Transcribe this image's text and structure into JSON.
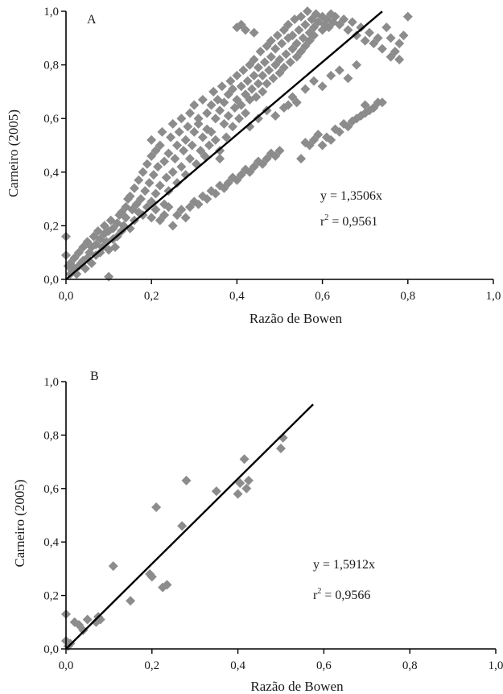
{
  "chart_data": [
    {
      "type": "scatter",
      "panel_label": "A",
      "xlabel": "Razão de Bowen",
      "ylabel": "Carneiro (2005)",
      "xlim": [
        0,
        1
      ],
      "ylim": [
        0,
        1
      ],
      "xticks": [
        "0,0",
        "0,2",
        "0,4",
        "0,6",
        "0,8",
        "1,0"
      ],
      "yticks": [
        "0,0",
        "0,2",
        "0,4",
        "0,6",
        "0,8",
        "1,0"
      ],
      "grid": false,
      "marker_color": "#8c8c8c",
      "line_color": "#000000",
      "equation": "y = 1,3506x",
      "r2_prefix": "r",
      "r2_sup": "2",
      "r2_value": " = 0,9561",
      "trendline": {
        "slope": 1.3506,
        "x_range": [
          0,
          0.74
        ]
      },
      "points": [
        [
          0.0,
          0.16
        ],
        [
          0.0,
          0.09
        ],
        [
          0.005,
          0.05
        ],
        [
          0.01,
          0.02
        ],
        [
          0.01,
          0.06
        ],
        [
          0.015,
          0.03
        ],
        [
          0.02,
          0.04
        ],
        [
          0.02,
          0.08
        ],
        [
          0.025,
          0.02
        ],
        [
          0.03,
          0.05
        ],
        [
          0.03,
          0.1
        ],
        [
          0.035,
          0.06
        ],
        [
          0.04,
          0.07
        ],
        [
          0.04,
          0.12
        ],
        [
          0.045,
          0.04
        ],
        [
          0.05,
          0.08
        ],
        [
          0.05,
          0.14
        ],
        [
          0.055,
          0.1
        ],
        [
          0.06,
          0.06
        ],
        [
          0.06,
          0.12
        ],
        [
          0.065,
          0.16
        ],
        [
          0.07,
          0.09
        ],
        [
          0.07,
          0.13
        ],
        [
          0.075,
          0.18
        ],
        [
          0.08,
          0.1
        ],
        [
          0.08,
          0.15
        ],
        [
          0.085,
          0.12
        ],
        [
          0.09,
          0.17
        ],
        [
          0.09,
          0.2
        ],
        [
          0.095,
          0.14
        ],
        [
          0.1,
          0.01
        ],
        [
          0.1,
          0.11
        ],
        [
          0.1,
          0.18
        ],
        [
          0.105,
          0.22
        ],
        [
          0.11,
          0.15
        ],
        [
          0.11,
          0.19
        ],
        [
          0.115,
          0.12
        ],
        [
          0.12,
          0.16
        ],
        [
          0.12,
          0.21
        ],
        [
          0.125,
          0.24
        ],
        [
          0.13,
          0.18
        ],
        [
          0.13,
          0.25
        ],
        [
          0.135,
          0.2
        ],
        [
          0.14,
          0.27
        ],
        [
          0.14,
          0.23
        ],
        [
          0.145,
          0.3
        ],
        [
          0.15,
          0.19
        ],
        [
          0.15,
          0.31
        ],
        [
          0.155,
          0.26
        ],
        [
          0.16,
          0.22
        ],
        [
          0.16,
          0.34
        ],
        [
          0.165,
          0.28
        ],
        [
          0.17,
          0.25
        ],
        [
          0.17,
          0.37
        ],
        [
          0.175,
          0.3
        ],
        [
          0.18,
          0.24
        ],
        [
          0.18,
          0.4
        ],
        [
          0.185,
          0.33
        ],
        [
          0.19,
          0.27
        ],
        [
          0.19,
          0.43
        ],
        [
          0.195,
          0.36
        ],
        [
          0.2,
          0.29
        ],
        [
          0.2,
          0.46
        ],
        [
          0.2,
          0.52
        ],
        [
          0.205,
          0.39
        ],
        [
          0.21,
          0.32
        ],
        [
          0.21,
          0.48
        ],
        [
          0.215,
          0.42
        ],
        [
          0.22,
          0.35
        ],
        [
          0.22,
          0.5
        ],
        [
          0.225,
          0.55
        ],
        [
          0.23,
          0.28
        ],
        [
          0.23,
          0.44
        ],
        [
          0.235,
          0.38
        ],
        [
          0.24,
          0.47
        ],
        [
          0.24,
          0.33
        ],
        [
          0.245,
          0.53
        ],
        [
          0.25,
          0.4
        ],
        [
          0.25,
          0.58
        ],
        [
          0.255,
          0.45
        ],
        [
          0.26,
          0.5
        ],
        [
          0.26,
          0.36
        ],
        [
          0.265,
          0.55
        ],
        [
          0.27,
          0.42
        ],
        [
          0.27,
          0.6
        ],
        [
          0.275,
          0.48
        ],
        [
          0.28,
          0.52
        ],
        [
          0.28,
          0.39
        ],
        [
          0.285,
          0.57
        ],
        [
          0.29,
          0.62
        ],
        [
          0.29,
          0.45
        ],
        [
          0.295,
          0.5
        ],
        [
          0.3,
          0.55
        ],
        [
          0.3,
          0.65
        ],
        [
          0.305,
          0.43
        ],
        [
          0.31,
          0.58
        ],
        [
          0.31,
          0.6
        ],
        [
          0.315,
          0.48
        ],
        [
          0.32,
          0.53
        ],
        [
          0.32,
          0.67
        ],
        [
          0.325,
          0.46
        ],
        [
          0.33,
          0.56
        ],
        [
          0.33,
          0.62
        ],
        [
          0.335,
          0.5
        ],
        [
          0.34,
          0.65
        ],
        [
          0.34,
          0.55
        ],
        [
          0.345,
          0.7
        ],
        [
          0.35,
          0.52
        ],
        [
          0.35,
          0.6
        ],
        [
          0.355,
          0.67
        ],
        [
          0.36,
          0.48
        ],
        [
          0.36,
          0.63
        ],
        [
          0.365,
          0.72
        ],
        [
          0.37,
          0.58
        ],
        [
          0.37,
          0.66
        ],
        [
          0.375,
          0.53
        ],
        [
          0.38,
          0.69
        ],
        [
          0.38,
          0.61
        ],
        [
          0.385,
          0.74
        ],
        [
          0.39,
          0.57
        ],
        [
          0.39,
          0.71
        ],
        [
          0.395,
          0.64
        ],
        [
          0.4,
          0.67
        ],
        [
          0.4,
          0.76
        ],
        [
          0.405,
          0.6
        ],
        [
          0.41,
          0.72
        ],
        [
          0.41,
          0.65
        ],
        [
          0.415,
          0.78
        ],
        [
          0.42,
          0.69
        ],
        [
          0.42,
          0.62
        ],
        [
          0.425,
          0.74
        ],
        [
          0.43,
          0.8
        ],
        [
          0.43,
          0.67
        ],
        [
          0.435,
          0.71
        ],
        [
          0.44,
          0.76
        ],
        [
          0.44,
          0.82
        ],
        [
          0.445,
          0.68
        ],
        [
          0.45,
          0.73
        ],
        [
          0.45,
          0.79
        ],
        [
          0.455,
          0.85
        ],
        [
          0.46,
          0.7
        ],
        [
          0.46,
          0.76
        ],
        [
          0.465,
          0.81
        ],
        [
          0.47,
          0.87
        ],
        [
          0.47,
          0.73
        ],
        [
          0.475,
          0.78
        ],
        [
          0.48,
          0.83
        ],
        [
          0.48,
          0.89
        ],
        [
          0.485,
          0.75
        ],
        [
          0.49,
          0.8
        ],
        [
          0.49,
          0.86
        ],
        [
          0.495,
          0.91
        ],
        [
          0.5,
          0.77
        ],
        [
          0.5,
          0.82
        ],
        [
          0.505,
          0.88
        ],
        [
          0.51,
          0.93
        ],
        [
          0.51,
          0.79
        ],
        [
          0.515,
          0.84
        ],
        [
          0.52,
          0.9
        ],
        [
          0.52,
          0.95
        ],
        [
          0.525,
          0.81
        ],
        [
          0.53,
          0.86
        ],
        [
          0.53,
          0.91
        ],
        [
          0.535,
          0.97
        ],
        [
          0.54,
          0.83
        ],
        [
          0.54,
          0.88
        ],
        [
          0.545,
          0.93
        ],
        [
          0.55,
          0.98
        ],
        [
          0.55,
          0.85
        ],
        [
          0.555,
          0.9
        ],
        [
          0.56,
          0.95
        ],
        [
          0.56,
          0.87
        ],
        [
          0.565,
          1.0
        ],
        [
          0.57,
          0.92
        ],
        [
          0.57,
          0.89
        ],
        [
          0.575,
          0.97
        ],
        [
          0.58,
          0.94
        ],
        [
          0.58,
          0.91
        ],
        [
          0.585,
          0.99
        ],
        [
          0.59,
          0.96
        ],
        [
          0.6,
          0.93
        ],
        [
          0.6,
          0.98
        ],
        [
          0.605,
          0.95
        ],
        [
          0.61,
          0.97
        ],
        [
          0.615,
          0.94
        ],
        [
          0.62,
          0.99
        ],
        [
          0.625,
          0.96
        ],
        [
          0.63,
          0.98
        ],
        [
          0.64,
          0.95
        ],
        [
          0.65,
          0.97
        ],
        [
          0.66,
          0.93
        ],
        [
          0.67,
          0.96
        ],
        [
          0.68,
          0.91
        ],
        [
          0.69,
          0.94
        ],
        [
          0.7,
          0.89
        ],
        [
          0.71,
          0.92
        ],
        [
          0.72,
          0.88
        ],
        [
          0.73,
          0.9
        ],
        [
          0.74,
          0.86
        ],
        [
          0.76,
          0.83
        ],
        [
          0.77,
          0.85
        ],
        [
          0.78,
          0.88
        ],
        [
          0.79,
          0.91
        ],
        [
          0.8,
          0.98
        ],
        [
          0.73,
          0.66
        ],
        [
          0.7,
          0.65
        ],
        [
          0.72,
          0.64
        ],
        [
          0.76,
          0.9
        ],
        [
          0.78,
          0.82
        ],
        [
          0.75,
          0.94
        ],
        [
          0.2,
          0.23
        ],
        [
          0.21,
          0.26
        ],
        [
          0.22,
          0.22
        ],
        [
          0.23,
          0.24
        ],
        [
          0.24,
          0.27
        ],
        [
          0.25,
          0.2
        ],
        [
          0.26,
          0.24
        ],
        [
          0.27,
          0.26
        ],
        [
          0.28,
          0.23
        ],
        [
          0.29,
          0.27
        ],
        [
          0.3,
          0.29
        ],
        [
          0.31,
          0.28
        ],
        [
          0.32,
          0.31
        ],
        [
          0.33,
          0.3
        ],
        [
          0.34,
          0.33
        ],
        [
          0.35,
          0.32
        ],
        [
          0.36,
          0.35
        ],
        [
          0.37,
          0.34
        ],
        [
          0.38,
          0.36
        ],
        [
          0.39,
          0.38
        ],
        [
          0.4,
          0.37
        ],
        [
          0.41,
          0.39
        ],
        [
          0.42,
          0.41
        ],
        [
          0.43,
          0.4
        ],
        [
          0.44,
          0.42
        ],
        [
          0.45,
          0.44
        ],
        [
          0.46,
          0.43
        ],
        [
          0.47,
          0.45
        ],
        [
          0.48,
          0.47
        ],
        [
          0.49,
          0.46
        ],
        [
          0.5,
          0.48
        ],
        [
          0.55,
          0.45
        ],
        [
          0.6,
          0.5
        ],
        [
          0.62,
          0.52
        ],
        [
          0.64,
          0.55
        ],
        [
          0.66,
          0.57
        ],
        [
          0.68,
          0.6
        ],
        [
          0.7,
          0.62
        ],
        [
          0.72,
          0.64
        ],
        [
          0.74,
          0.66
        ],
        [
          0.58,
          0.52
        ],
        [
          0.59,
          0.54
        ],
        [
          0.61,
          0.53
        ],
        [
          0.63,
          0.56
        ],
        [
          0.65,
          0.58
        ],
        [
          0.67,
          0.59
        ],
        [
          0.69,
          0.61
        ],
        [
          0.71,
          0.63
        ],
        [
          0.56,
          0.51
        ],
        [
          0.57,
          0.5
        ],
        [
          0.4,
          0.94
        ],
        [
          0.42,
          0.93
        ],
        [
          0.44,
          0.92
        ],
        [
          0.41,
          0.95
        ],
        [
          0.52,
          0.65
        ],
        [
          0.53,
          0.68
        ],
        [
          0.56,
          0.71
        ],
        [
          0.54,
          0.66
        ],
        [
          0.58,
          0.74
        ],
        [
          0.62,
          0.76
        ],
        [
          0.64,
          0.78
        ],
        [
          0.66,
          0.75
        ],
        [
          0.68,
          0.8
        ],
        [
          0.6,
          0.72
        ],
        [
          0.45,
          0.6
        ],
        [
          0.47,
          0.63
        ],
        [
          0.49,
          0.61
        ],
        [
          0.51,
          0.64
        ],
        [
          0.43,
          0.57
        ],
        [
          0.36,
          0.45
        ]
      ]
    },
    {
      "type": "scatter",
      "panel_label": "B",
      "xlabel": "Razão de Bowen",
      "ylabel": "Carneiro (2005)",
      "xlim": [
        0,
        1
      ],
      "ylim": [
        0,
        1
      ],
      "xticks": [
        "0,0",
        "0,2",
        "0,4",
        "0,6",
        "0,8",
        "1,0"
      ],
      "yticks": [
        "0,0",
        "0,2",
        "0,4",
        "0,6",
        "0,8",
        "1,0"
      ],
      "grid": false,
      "marker_color": "#8c8c8c",
      "line_color": "#000000",
      "equation": "y = 1,5912x",
      "r2_prefix": "r",
      "r2_sup": "2",
      "r2_value": " = 0,9566",
      "trendline": {
        "slope": 1.5912,
        "x_range": [
          0,
          0.575
        ]
      },
      "points": [
        [
          0.0,
          0.13
        ],
        [
          0.0,
          0.03
        ],
        [
          0.005,
          0.01
        ],
        [
          0.01,
          0.02
        ],
        [
          0.02,
          0.1
        ],
        [
          0.03,
          0.09
        ],
        [
          0.04,
          0.07
        ],
        [
          0.05,
          0.11
        ],
        [
          0.07,
          0.1
        ],
        [
          0.075,
          0.12
        ],
        [
          0.08,
          0.11
        ],
        [
          0.11,
          0.31
        ],
        [
          0.15,
          0.18
        ],
        [
          0.195,
          0.28
        ],
        [
          0.2,
          0.27
        ],
        [
          0.21,
          0.53
        ],
        [
          0.225,
          0.23
        ],
        [
          0.235,
          0.24
        ],
        [
          0.27,
          0.46
        ],
        [
          0.28,
          0.63
        ],
        [
          0.35,
          0.59
        ],
        [
          0.4,
          0.58
        ],
        [
          0.405,
          0.62
        ],
        [
          0.415,
          0.71
        ],
        [
          0.42,
          0.6
        ],
        [
          0.425,
          0.63
        ],
        [
          0.5,
          0.75
        ],
        [
          0.505,
          0.79
        ]
      ]
    }
  ]
}
